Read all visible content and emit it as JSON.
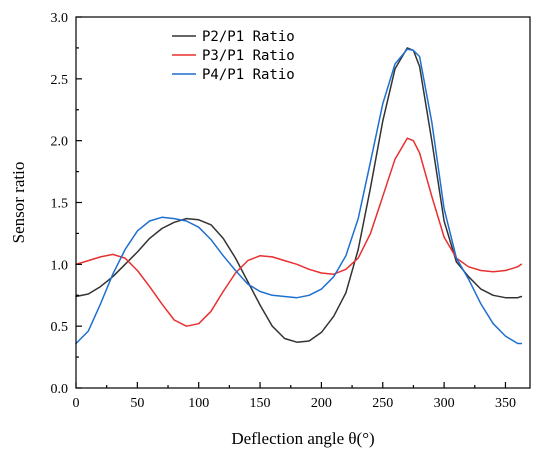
{
  "chart_data": {
    "type": "line",
    "xlabel": "Deflection angle θ(°)",
    "ylabel": "Sensor ratio",
    "xlim": [
      0,
      370
    ],
    "ylim": [
      0.0,
      3.0
    ],
    "x_ticks": [
      0,
      50,
      100,
      150,
      200,
      250,
      300,
      350
    ],
    "y_ticks": [
      0.0,
      0.5,
      1.0,
      1.5,
      2.0,
      2.5,
      3.0
    ],
    "legend_position": "top-center",
    "grid": false,
    "x": [
      0,
      10,
      20,
      30,
      40,
      50,
      60,
      70,
      80,
      90,
      100,
      110,
      120,
      130,
      140,
      150,
      160,
      170,
      180,
      190,
      200,
      210,
      220,
      230,
      240,
      250,
      260,
      270,
      275,
      280,
      290,
      300,
      310,
      320,
      330,
      340,
      350,
      360,
      363
    ],
    "series": [
      {
        "name": "P2/P1 Ratio",
        "color": "#333333",
        "values": [
          0.74,
          0.76,
          0.82,
          0.9,
          1.0,
          1.1,
          1.21,
          1.29,
          1.34,
          1.37,
          1.36,
          1.32,
          1.21,
          1.05,
          0.86,
          0.67,
          0.5,
          0.4,
          0.37,
          0.38,
          0.45,
          0.58,
          0.77,
          1.12,
          1.62,
          2.16,
          2.58,
          2.75,
          2.73,
          2.6,
          2.0,
          1.35,
          1.02,
          0.9,
          0.8,
          0.75,
          0.73,
          0.73,
          0.74
        ]
      },
      {
        "name": "P3/P1 Ratio",
        "color": "#e8302f",
        "values": [
          1.0,
          1.03,
          1.06,
          1.08,
          1.05,
          0.95,
          0.82,
          0.68,
          0.55,
          0.5,
          0.52,
          0.62,
          0.78,
          0.93,
          1.03,
          1.07,
          1.06,
          1.03,
          1.0,
          0.96,
          0.93,
          0.92,
          0.96,
          1.05,
          1.25,
          1.55,
          1.85,
          2.02,
          2.0,
          1.9,
          1.55,
          1.22,
          1.05,
          0.98,
          0.95,
          0.94,
          0.95,
          0.98,
          1.0
        ]
      },
      {
        "name": "P4/P1 Ratio",
        "color": "#1f6fd1",
        "values": [
          0.36,
          0.46,
          0.68,
          0.92,
          1.12,
          1.27,
          1.35,
          1.38,
          1.37,
          1.35,
          1.3,
          1.2,
          1.07,
          0.95,
          0.84,
          0.78,
          0.75,
          0.74,
          0.73,
          0.75,
          0.8,
          0.9,
          1.07,
          1.37,
          1.83,
          2.3,
          2.62,
          2.74,
          2.73,
          2.68,
          2.15,
          1.45,
          1.05,
          0.88,
          0.68,
          0.52,
          0.42,
          0.36,
          0.36
        ]
      }
    ]
  }
}
